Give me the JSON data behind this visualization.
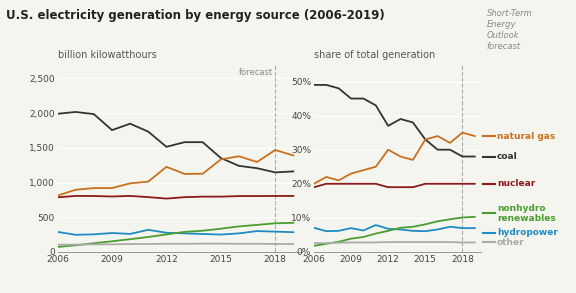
{
  "title": "U.S. electricity generation by energy source (2006-2019)",
  "ylabel_left": "billion kilowatthours",
  "ylabel_right": "share of total generation",
  "forecast_label": "forecast",
  "steo_label": "Short-Term\nEnergy\nOutlook\nforecast",
  "years": [
    2006,
    2007,
    2008,
    2009,
    2010,
    2011,
    2012,
    2013,
    2014,
    2015,
    2016,
    2017,
    2018,
    2019
  ],
  "forecast_year": 2018,
  "left": {
    "coal": [
      1990,
      2016,
      1985,
      1755,
      1847,
      1733,
      1514,
      1581,
      1581,
      1353,
      1240,
      1206,
      1146,
      1160
    ],
    "natural_gas": [
      813,
      896,
      920,
      920,
      988,
      1013,
      1226,
      1124,
      1126,
      1333,
      1378,
      1296,
      1468,
      1390
    ],
    "nuclear": [
      787,
      807,
      806,
      799,
      807,
      790,
      769,
      789,
      797,
      797,
      805,
      805,
      807,
      807
    ],
    "nonhydro": [
      72,
      97,
      126,
      154,
      184,
      216,
      253,
      289,
      306,
      335,
      368,
      390,
      413,
      420
    ],
    "hydropower": [
      289,
      247,
      254,
      273,
      260,
      319,
      277,
      268,
      259,
      251,
      268,
      301,
      293,
      285
    ],
    "other": [
      105,
      105,
      110,
      110,
      115,
      115,
      118,
      118,
      120,
      120,
      118,
      118,
      115,
      115
    ]
  },
  "right": {
    "coal": [
      49,
      49,
      48,
      45,
      45,
      43,
      37,
      39,
      38,
      33,
      30,
      30,
      28,
      28
    ],
    "natural_gas": [
      20,
      22,
      21,
      23,
      24,
      25,
      30,
      28,
      27,
      33,
      34,
      32,
      35,
      34
    ],
    "nuclear": [
      19,
      20,
      20,
      20,
      20,
      20,
      19,
      19,
      19,
      20,
      20,
      20,
      20,
      20
    ],
    "nonhydro": [
      1.8,
      2.4,
      3.0,
      3.9,
      4.4,
      5.4,
      6.2,
      7.1,
      7.4,
      8.1,
      9.0,
      9.6,
      10.1,
      10.3
    ],
    "hydropower": [
      7.1,
      6.1,
      6.2,
      7.0,
      6.3,
      7.9,
      6.8,
      6.6,
      6.2,
      6.1,
      6.6,
      7.4,
      7.0,
      7.0
    ],
    "other": [
      2.6,
      2.6,
      2.7,
      2.8,
      2.8,
      2.8,
      2.9,
      2.9,
      2.9,
      2.9,
      2.9,
      2.9,
      2.8,
      2.8
    ]
  },
  "colors": {
    "coal": "#333333",
    "natural_gas": "#c87020",
    "nuclear": "#8b1a1a",
    "nonhydro": "#4a9e2f",
    "hydropower": "#1e8bc3",
    "other": "#aaaaaa"
  },
  "legend_labels": {
    "natural_gas": "natural gas",
    "coal": "coal",
    "nuclear": "nuclear",
    "nonhydro": "nonhydro\nrenewables",
    "hydropower": "hydropower",
    "other": "other"
  },
  "bg_color": "#f5f5f0",
  "title_fontsize": 8.5,
  "label_fontsize": 7,
  "tick_fontsize": 6.5,
  "legend_fontsize": 6.5
}
